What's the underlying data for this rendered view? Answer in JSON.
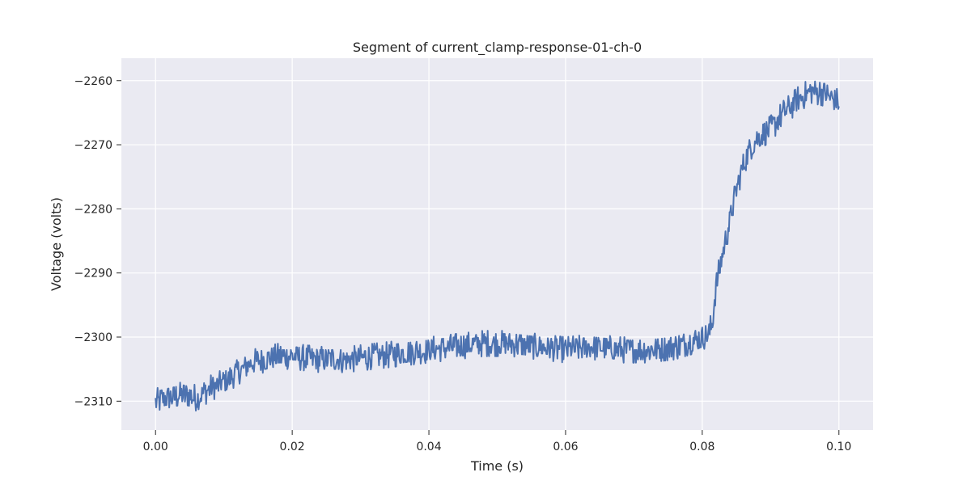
{
  "chart_data": {
    "type": "line",
    "title": "Segment of current_clamp-response-01-ch-0",
    "xlabel": "Time (s)",
    "ylabel": "Voltage (volts)",
    "xlim": [
      -0.005,
      0.105
    ],
    "ylim": [
      -2314.5,
      -2256.5
    ],
    "xticks": [
      0.0,
      0.02,
      0.04,
      0.06,
      0.08,
      0.1
    ],
    "xtick_labels": [
      "0.00",
      "0.02",
      "0.04",
      "0.06",
      "0.08",
      "0.10"
    ],
    "yticks": [
      -2260,
      -2270,
      -2280,
      -2290,
      -2300,
      -2310
    ],
    "ytick_labels": [
      "−2260",
      "−2270",
      "−2280",
      "−2290",
      "−2300",
      "−2310"
    ],
    "grid": true,
    "colors": {
      "background": "#eaeaf2",
      "grid": "#ffffff",
      "line": "#4c72b0"
    },
    "series": [
      {
        "x": [
          0.0,
          0.002,
          0.004,
          0.006,
          0.008,
          0.01,
          0.012,
          0.014,
          0.016,
          0.018,
          0.02,
          0.024,
          0.028,
          0.032,
          0.036,
          0.04,
          0.044,
          0.048,
          0.052,
          0.056,
          0.06,
          0.064,
          0.068,
          0.072,
          0.076,
          0.079,
          0.081,
          0.0815,
          0.082,
          0.083,
          0.084,
          0.085,
          0.086,
          0.087,
          0.088,
          0.09,
          0.092,
          0.094,
          0.096,
          0.098,
          0.1
        ],
        "y": [
          -2310,
          -2309.5,
          -2309,
          -2309.5,
          -2308,
          -2307,
          -2305.5,
          -2304,
          -2303.5,
          -2303,
          -2303,
          -2303.5,
          -2303.5,
          -2303,
          -2302.5,
          -2302,
          -2301.5,
          -2301,
          -2301,
          -2301.5,
          -2302,
          -2301.5,
          -2302,
          -2302,
          -2301.5,
          -2300.5,
          -2299.5,
          -2297.5,
          -2292,
          -2287,
          -2282,
          -2277,
          -2273,
          -2270.5,
          -2269,
          -2267.5,
          -2265,
          -2263,
          -2261.5,
          -2262,
          -2263.5
        ]
      }
    ]
  }
}
